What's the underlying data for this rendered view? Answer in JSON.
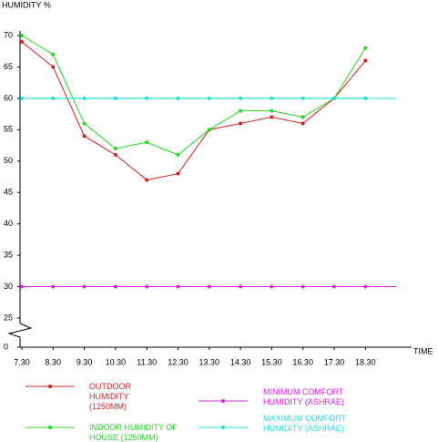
{
  "chart_data": {
    "type": "line",
    "y_label": "HUMIDITY %",
    "x_label": "TIME",
    "categories": [
      "7.30",
      "8.30",
      "9.30",
      "10.30",
      "11.30",
      "12.30",
      "13.30",
      "14.30",
      "15.30",
      "16.30",
      "17.30",
      "18.30"
    ],
    "ylim": [
      25,
      70
    ],
    "y_break": [
      0,
      25
    ],
    "yticks": [
      0,
      25,
      30,
      35,
      40,
      45,
      50,
      55,
      60,
      65,
      70
    ],
    "grid": false,
    "legend": "bottom",
    "series": [
      {
        "name": "OUTDOOR HUMIDITY (1250MM)",
        "color": "#d42020",
        "values": [
          69,
          65,
          54,
          51,
          47,
          48,
          55,
          56,
          57,
          56,
          60,
          66
        ]
      },
      {
        "name": "MINIMUM COMFORT HUMIDITY (ASHRAE)",
        "color": "#e020e0",
        "extend": true,
        "values": [
          30,
          30,
          30,
          30,
          30,
          30,
          30,
          30,
          30,
          30,
          30,
          30
        ]
      },
      {
        "name": "INDOOR HUMIDITY OF HOUSE (1250MM)",
        "color": "#20d820",
        "values": [
          70,
          67,
          56,
          52,
          53,
          51,
          55,
          58,
          58,
          57,
          60,
          68
        ]
      },
      {
        "name": "MAXIMUM COMFORT HUMIDITY (ASHRAE)",
        "color": "#20e0e0",
        "extend": true,
        "values": [
          60,
          60,
          60,
          60,
          60,
          60,
          60,
          60,
          60,
          60,
          60,
          60
        ]
      }
    ]
  }
}
